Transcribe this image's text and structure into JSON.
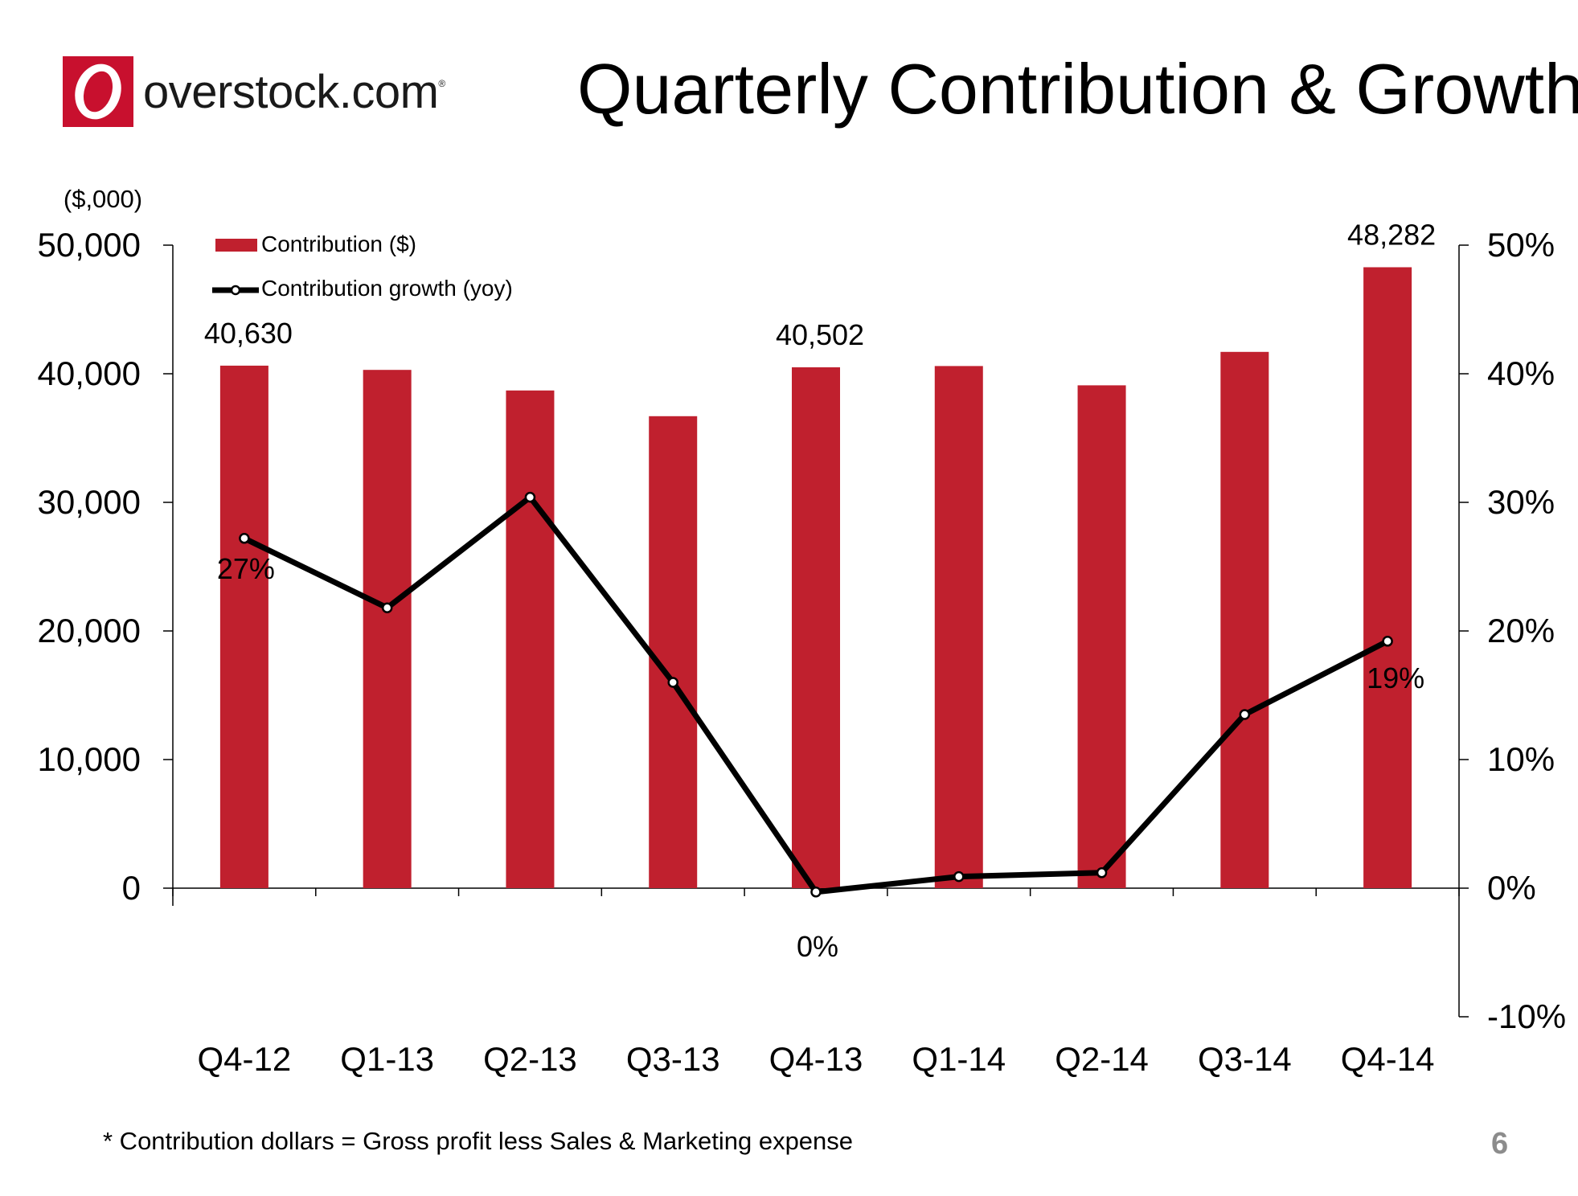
{
  "logo": {
    "text": "overstock.com",
    "mark": "®"
  },
  "title": "Quarterly Contribution & Growth*",
  "footnote": "* Contribution dollars = Gross profit less Sales & Marketing expense",
  "page_number": "6",
  "colors": {
    "bar": "#c0202e",
    "line": "#000000",
    "logo_red": "#c8102e",
    "page_number": "#8c8c8c"
  },
  "chart_data": {
    "type": "bar",
    "unit_label": "($,000)",
    "categories": [
      "Q4-12",
      "Q1-13",
      "Q2-13",
      "Q3-13",
      "Q4-13",
      "Q1-14",
      "Q2-14",
      "Q3-14",
      "Q4-14"
    ],
    "series": [
      {
        "name": "Contribution ($)",
        "type": "bar",
        "axis": "left",
        "values": [
          40630,
          40300,
          38700,
          36700,
          40502,
          40600,
          39100,
          41700,
          48282
        ]
      },
      {
        "name": "Contribution growth (yoy)",
        "type": "line",
        "axis": "right",
        "values": [
          27.2,
          21.8,
          30.4,
          16.0,
          -0.3,
          0.9,
          1.2,
          13.5,
          19.2
        ]
      }
    ],
    "data_labels": [
      {
        "series": 0,
        "index": 0,
        "text": "40,630"
      },
      {
        "series": 0,
        "index": 4,
        "text": "40,502"
      },
      {
        "series": 0,
        "index": 8,
        "text": "48,282"
      },
      {
        "series": 1,
        "index": 0,
        "text": "27%"
      },
      {
        "series": 1,
        "index": 4,
        "text": "0%"
      },
      {
        "series": 1,
        "index": 8,
        "text": "19%"
      }
    ],
    "y_left": {
      "ylim": [
        0,
        50000
      ],
      "ticks": [
        0,
        10000,
        20000,
        30000,
        40000,
        50000
      ],
      "tick_labels": [
        "0",
        "10,000",
        "20,000",
        "30,000",
        "40,000",
        "50,000"
      ]
    },
    "y_right": {
      "ylim": [
        -10,
        50
      ],
      "ticks": [
        -10,
        0,
        10,
        20,
        30,
        40,
        50
      ],
      "tick_labels": [
        "-10%",
        "0%",
        "10%",
        "20%",
        "30%",
        "40%",
        "50%"
      ]
    },
    "legend": {
      "position": "top-left"
    },
    "grid": false
  }
}
